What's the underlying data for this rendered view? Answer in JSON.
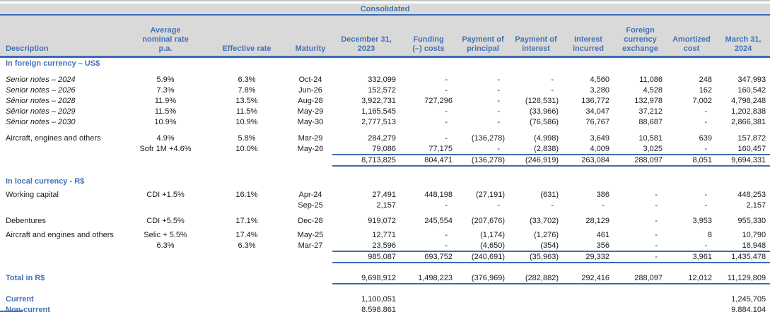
{
  "colors": {
    "accent_blue_text": "#4272b4",
    "rule_blue": "#3a6bb5",
    "header_gray": "#d9d9d9"
  },
  "table": {
    "banner": "Consolidated",
    "headers": [
      "Description",
      "Average\nnominal rate\np.a.",
      "Effective rate",
      "Maturity",
      "December 31,\n2023",
      "Funding\n(–) costs",
      "Payment of\nprincipal",
      "Payment of\ninterest",
      "Interest\nincurred",
      "Foreign\ncurrency\nexchange",
      "Amortized\ncost",
      "March 31,\n2024"
    ],
    "rows": [
      {
        "t": "section",
        "c": [
          "In foreign currency – US$",
          "",
          "",
          "",
          "",
          "",
          "",
          "",
          "",
          "",
          "",
          ""
        ]
      },
      {
        "t": "spacer",
        "h": 8,
        "c": []
      },
      {
        "t": "data-italic",
        "c": [
          "Senior notes – 2024",
          "5.9%",
          "6.3%",
          "Oct-24",
          "332,099",
          "-",
          "-",
          "-",
          "4,560",
          "11,086",
          "248",
          "347,993"
        ]
      },
      {
        "t": "data-italic",
        "c": [
          "Senior notes – 2026",
          "7.3%",
          "7.8%",
          "Jun-26",
          "152,572",
          "-",
          "-",
          "-",
          "3,280",
          "4,528",
          "162",
          "160,542"
        ]
      },
      {
        "t": "data-italic",
        "c": [
          "Sênior notes – 2028",
          "11.9%",
          "13.5%",
          "Aug-28",
          "3,922,731",
          "727,296",
          "-",
          "(128,531)",
          "136,772",
          "132,978",
          "7,002",
          "4,798,248"
        ]
      },
      {
        "t": "data-italic",
        "c": [
          "Sênior notes – 2029",
          "11.5%",
          "11.5%",
          "May-29",
          "1,165,545",
          "-",
          "-",
          "(33,966)",
          "34,047",
          "37,212",
          "-",
          "1,202,838"
        ]
      },
      {
        "t": "data-italic",
        "c": [
          "Sênior notes – 2030",
          "10.9%",
          "10.9%",
          "May-30",
          "2,777,513",
          "-",
          "-",
          "(76,586)",
          "76,767",
          "88,687",
          "-",
          "2,866,381"
        ]
      },
      {
        "t": "spacer",
        "h": 8,
        "c": []
      },
      {
        "t": "data",
        "c": [
          "Aircraft, engines and others",
          "4.9%",
          "5.8%",
          "Mar-29",
          "284,279",
          "-",
          "(136,278)",
          "(4,998)",
          "3,649",
          "10,581",
          "639",
          "157,872"
        ]
      },
      {
        "t": "data",
        "c": [
          "",
          "Sofr 1M +4.6%",
          "10.0%",
          "May-26",
          "79,086",
          "77,175",
          "-",
          "(2,838)",
          "4,009",
          "3,025",
          "-",
          "160,457"
        ]
      },
      {
        "t": "subtotal",
        "c": [
          "",
          "",
          "",
          "",
          "8,713,825",
          "804,471",
          "(136,278)",
          "(246,919)",
          "263,084",
          "288,097",
          "8,051",
          "9,694,331"
        ]
      },
      {
        "t": "spacer",
        "h": 13,
        "c": []
      },
      {
        "t": "section",
        "c": [
          "In local currency - R$",
          "",
          "",
          "",
          "",
          "",
          "",
          "",
          "",
          "",
          "",
          ""
        ]
      },
      {
        "t": "spacer",
        "h": 4,
        "c": []
      },
      {
        "t": "data",
        "c": [
          "Working capital",
          "CDI +1.5%",
          "16.1%",
          "Apr-24",
          "27,491",
          "448,198",
          "(27,191)",
          "(631)",
          "386",
          "-",
          "-",
          "448,253"
        ]
      },
      {
        "t": "data",
        "c": [
          "",
          "",
          "",
          "Sep-25",
          "2,157",
          "-",
          "-",
          "-",
          "-",
          "-",
          "-",
          "2,157"
        ]
      },
      {
        "t": "spacer",
        "h": 7,
        "c": []
      },
      {
        "t": "data",
        "c": [
          "Debentures",
          "CDI +5.5%",
          "17.1%",
          "Dec-28",
          "919,072",
          "245,554",
          "(207,676)",
          "(33,702)",
          "28,129",
          "-",
          "3,953",
          "955,330"
        ]
      },
      {
        "t": "spacer",
        "h": 5,
        "c": []
      },
      {
        "t": "data",
        "c": [
          "Aircraft and engines and others",
          "Selic + 5.5%",
          "17.4%",
          "May-25",
          "12,771",
          "-",
          "(1,174)",
          "(1,276)",
          "461",
          "-",
          "8",
          "10,790"
        ]
      },
      {
        "t": "data",
        "c": [
          "",
          "6.3%",
          "6.3%",
          "Mar-27",
          "23,596",
          "-",
          "(4,650)",
          "(354)",
          "356",
          "-",
          "-",
          "18,948"
        ]
      },
      {
        "t": "subtotal",
        "c": [
          "",
          "",
          "",
          "",
          "985,087",
          "693,752",
          "(240,691)",
          "(35,963)",
          "29,332",
          "-",
          "3,961",
          "1,435,478"
        ]
      },
      {
        "t": "spacer",
        "h": 13,
        "c": []
      },
      {
        "t": "total",
        "c": [
          "Total in R$",
          "",
          "",
          "",
          "9,698,912",
          "1,498,223",
          "(376,969)",
          "(282,882)",
          "292,416",
          "288,097",
          "12,012",
          "11,129,809"
        ]
      },
      {
        "t": "spacer",
        "h": 13,
        "c": []
      },
      {
        "t": "summary",
        "c": [
          "Current",
          "",
          "",
          "",
          "1,100,051",
          "",
          "",
          "",
          "",
          "",
          "",
          "1,245,705"
        ]
      },
      {
        "t": "summary",
        "c": [
          "Non-current",
          "",
          "",
          "",
          "8,598,861",
          "",
          "",
          "",
          "",
          "",
          "",
          "9,884,104"
        ]
      }
    ]
  }
}
